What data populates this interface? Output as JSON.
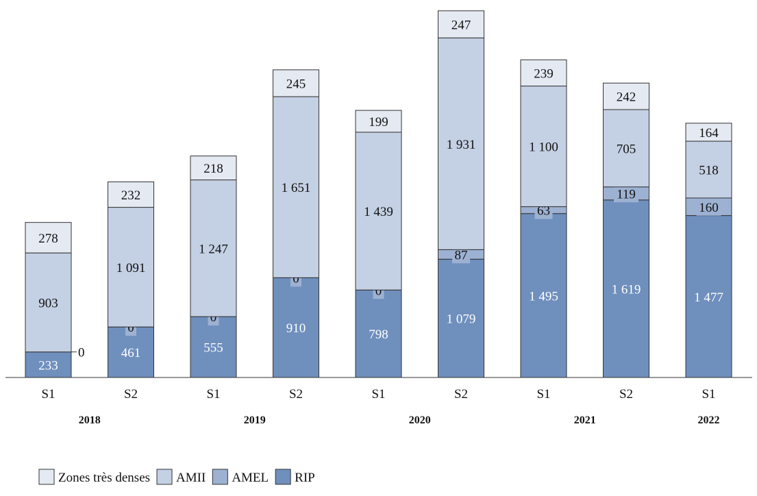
{
  "chart_data": {
    "type": "bar",
    "stacked": true,
    "categories": [
      "S1",
      "S2",
      "S1",
      "S2",
      "S1",
      "S2",
      "S1",
      "S2",
      "S1"
    ],
    "years": [
      {
        "label": "2018",
        "from": 0,
        "to": 1
      },
      {
        "label": "2019",
        "from": 2,
        "to": 3
      },
      {
        "label": "2020",
        "from": 4,
        "to": 5
      },
      {
        "label": "2021",
        "from": 6,
        "to": 7
      },
      {
        "label": "2022",
        "from": 8,
        "to": 8
      }
    ],
    "series": [
      {
        "name": "RIP",
        "color": "#6f8fbd",
        "label_color": "#ffffff",
        "values": [
          233,
          461,
          555,
          910,
          798,
          1079,
          1495,
          1619,
          1477
        ],
        "value_labels": [
          "233",
          "461",
          "555",
          "910",
          "798",
          "1 079",
          "1 495",
          "1 619",
          "1 477"
        ]
      },
      {
        "name": "AMEL",
        "color": "#9db1d2",
        "label_color": "#111111",
        "values": [
          0,
          0,
          0,
          0,
          0,
          87,
          63,
          119,
          160
        ],
        "value_labels": [
          "0",
          "0",
          "0",
          "0",
          "0",
          "87",
          "63",
          "119",
          "160"
        ]
      },
      {
        "name": "AMII",
        "color": "#c4d0e3",
        "label_color": "#111111",
        "values": [
          903,
          1091,
          1247,
          1651,
          1439,
          1931,
          1100,
          705,
          518
        ],
        "value_labels": [
          "903",
          "1 091",
          "1 247",
          "1 651",
          "1 439",
          "1 931",
          "1 100",
          "705",
          "518"
        ]
      },
      {
        "name": "Zones très denses",
        "color": "#e4e9f2",
        "label_color": "#111111",
        "values": [
          278,
          232,
          218,
          245,
          199,
          247,
          239,
          242,
          164
        ],
        "value_labels": [
          "278",
          "232",
          "218",
          "245",
          "199",
          "247",
          "239",
          "242",
          "164"
        ]
      }
    ],
    "legend_order": [
      "Zones très denses",
      "AMII",
      "AMEL",
      "RIP"
    ],
    "legend_position": "bottom-left",
    "ylim": [
      0,
      3380
    ],
    "grid": false,
    "title": "",
    "xlabel": "",
    "ylabel": ""
  }
}
